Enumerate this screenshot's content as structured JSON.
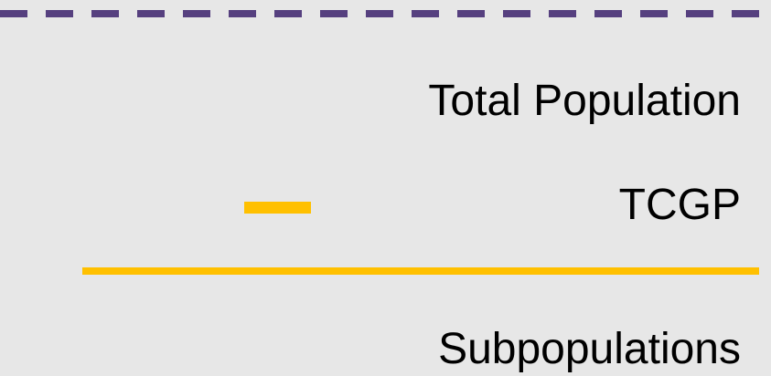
{
  "legend": {
    "items": [
      {
        "label": "Total Population"
      },
      {
        "label": "TCGP"
      },
      {
        "label": "Subpopulations"
      }
    ]
  }
}
